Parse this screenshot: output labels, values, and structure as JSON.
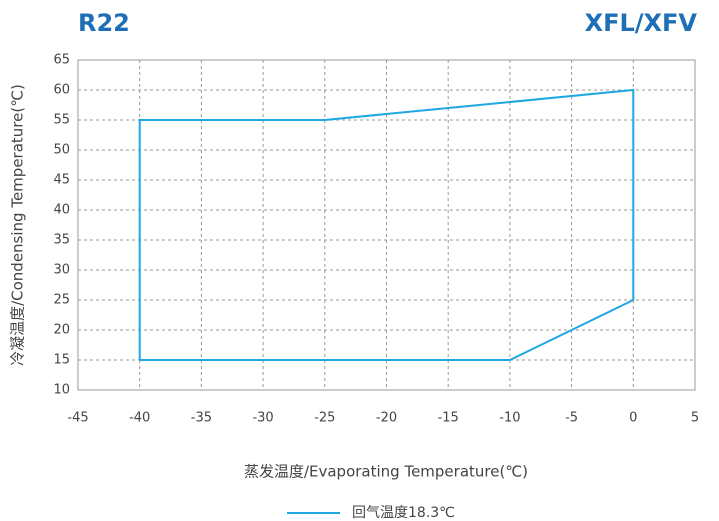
{
  "chart_data": {
    "type": "line",
    "title": "R22",
    "subtitle": "XFL/XFV",
    "xlabel": "蒸发温度/Evaporating Temperature(℃)",
    "ylabel": "冷凝温度/Condensing Temperature(℃)",
    "x": [
      -40,
      -40,
      -25,
      0,
      0,
      -10,
      -40
    ],
    "series": [
      {
        "name": "回气温度18.3℃",
        "color": "#1ea7e1",
        "values": [
          15,
          55,
          55,
          60,
          25,
          15,
          15
        ]
      }
    ],
    "xlim": [
      -45,
      5
    ],
    "xticks": [
      -45,
      -40,
      -35,
      -30,
      -25,
      -20,
      -15,
      -10,
      -5,
      0,
      5
    ],
    "ylim": [
      10,
      65
    ],
    "yticks": [
      10,
      15,
      20,
      25,
      30,
      35,
      40,
      45,
      50,
      55,
      60,
      65
    ],
    "grid": true,
    "legend": "bottom"
  }
}
